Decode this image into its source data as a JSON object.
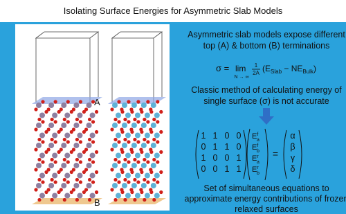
{
  "title": "Isolating Surface Energies for Asymmetric Slab Models",
  "figure": {
    "label_top": "A",
    "label_bottom": "B"
  },
  "intro": [
    "Asymmetric slab models expose different",
    "top (A) & bottom (B) terminations"
  ],
  "equation": {
    "lhs": "σ =",
    "lim": "lim",
    "limit_sub": "N → ∞",
    "num": "1",
    "den": "2A",
    "open": "(E",
    "slab": "Slab",
    "minus": " − NE",
    "bulk": "Bulk",
    "close": ")"
  },
  "classic": [
    "Classic method of calculating energy of",
    "single surface (σ) is not accurate"
  ],
  "matrix": [
    [
      1,
      1,
      0,
      0
    ],
    [
      0,
      1,
      1,
      0
    ],
    [
      1,
      0,
      0,
      1
    ],
    [
      0,
      0,
      1,
      1
    ]
  ],
  "energies": [
    {
      "base": "E",
      "sup": "f",
      "sub": "a"
    },
    {
      "base": "E",
      "sup": "f",
      "sub": "b"
    },
    {
      "base": "E",
      "sup": "r",
      "sub": "a"
    },
    {
      "base": "E",
      "sup": "r",
      "sub": "b"
    }
  ],
  "equals": "=",
  "unknowns": [
    "α",
    "β",
    "γ",
    "δ"
  ],
  "conclusion": [
    "Set of simultaneous equations to",
    "approximate energy contributions of frozen",
    "relaxed surfaces"
  ]
}
